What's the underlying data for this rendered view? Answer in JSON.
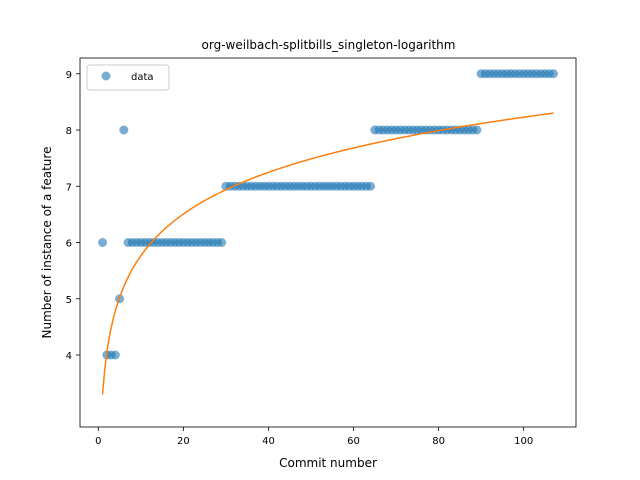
{
  "chart_data": {
    "type": "scatter",
    "title": "org-weilbach-splitbills_singleton-logarithm",
    "xlabel": "Commit number",
    "ylabel": "Number of instance of a feature",
    "xlim": [
      -4.3,
      112.3
    ],
    "ylim": [
      2.72,
      9.28
    ],
    "xticks": [
      0,
      20,
      40,
      60,
      80,
      100
    ],
    "yticks": [
      4,
      5,
      6,
      7,
      8,
      9
    ],
    "grid": false,
    "legend_position": "upper-left",
    "colors": {
      "data": "#1f77b4",
      "fit": "#ff7f0e"
    },
    "series": [
      {
        "name": "data",
        "kind": "scatter",
        "points": [
          [
            1,
            6
          ],
          [
            2,
            4
          ],
          [
            3,
            4
          ],
          [
            4,
            4
          ],
          [
            5,
            5
          ],
          [
            6,
            8
          ],
          [
            7,
            6
          ],
          [
            8,
            6
          ],
          [
            9,
            6
          ],
          [
            10,
            6
          ],
          [
            11,
            6
          ],
          [
            12,
            6
          ],
          [
            13,
            6
          ],
          [
            14,
            6
          ],
          [
            15,
            6
          ],
          [
            16,
            6
          ],
          [
            17,
            6
          ],
          [
            18,
            6
          ],
          [
            19,
            6
          ],
          [
            20,
            6
          ],
          [
            21,
            6
          ],
          [
            22,
            6
          ],
          [
            23,
            6
          ],
          [
            24,
            6
          ],
          [
            25,
            6
          ],
          [
            26,
            6
          ],
          [
            27,
            6
          ],
          [
            28,
            6
          ],
          [
            29,
            6
          ],
          [
            30,
            7
          ],
          [
            31,
            7
          ],
          [
            32,
            7
          ],
          [
            33,
            7
          ],
          [
            34,
            7
          ],
          [
            35,
            7
          ],
          [
            36,
            7
          ],
          [
            37,
            7
          ],
          [
            38,
            7
          ],
          [
            39,
            7
          ],
          [
            40,
            7
          ],
          [
            41,
            7
          ],
          [
            42,
            7
          ],
          [
            43,
            7
          ],
          [
            44,
            7
          ],
          [
            45,
            7
          ],
          [
            46,
            7
          ],
          [
            47,
            7
          ],
          [
            48,
            7
          ],
          [
            49,
            7
          ],
          [
            50,
            7
          ],
          [
            51,
            7
          ],
          [
            52,
            7
          ],
          [
            53,
            7
          ],
          [
            54,
            7
          ],
          [
            55,
            7
          ],
          [
            56,
            7
          ],
          [
            57,
            7
          ],
          [
            58,
            7
          ],
          [
            59,
            7
          ],
          [
            60,
            7
          ],
          [
            61,
            7
          ],
          [
            62,
            7
          ],
          [
            63,
            7
          ],
          [
            64,
            7
          ],
          [
            65,
            8
          ],
          [
            66,
            8
          ],
          [
            67,
            8
          ],
          [
            68,
            8
          ],
          [
            69,
            8
          ],
          [
            70,
            8
          ],
          [
            71,
            8
          ],
          [
            72,
            8
          ],
          [
            73,
            8
          ],
          [
            74,
            8
          ],
          [
            75,
            8
          ],
          [
            76,
            8
          ],
          [
            77,
            8
          ],
          [
            78,
            8
          ],
          [
            79,
            8
          ],
          [
            80,
            8
          ],
          [
            81,
            8
          ],
          [
            82,
            8
          ],
          [
            83,
            8
          ],
          [
            84,
            8
          ],
          [
            85,
            8
          ],
          [
            86,
            8
          ],
          [
            87,
            8
          ],
          [
            88,
            8
          ],
          [
            89,
            8
          ],
          [
            90,
            9
          ],
          [
            91,
            9
          ],
          [
            92,
            9
          ],
          [
            93,
            9
          ],
          [
            94,
            9
          ],
          [
            95,
            9
          ],
          [
            96,
            9
          ],
          [
            97,
            9
          ],
          [
            98,
            9
          ],
          [
            99,
            9
          ],
          [
            100,
            9
          ],
          [
            101,
            9
          ],
          [
            102,
            9
          ],
          [
            103,
            9
          ],
          [
            104,
            9
          ],
          [
            105,
            9
          ],
          [
            106,
            9
          ],
          [
            107,
            9
          ]
        ]
      },
      {
        "kind": "line",
        "formula": "y = 3.3 + 1.07 * ln(x)",
        "a": 3.3,
        "b": 1.07,
        "x_range": [
          1,
          107
        ]
      }
    ]
  }
}
